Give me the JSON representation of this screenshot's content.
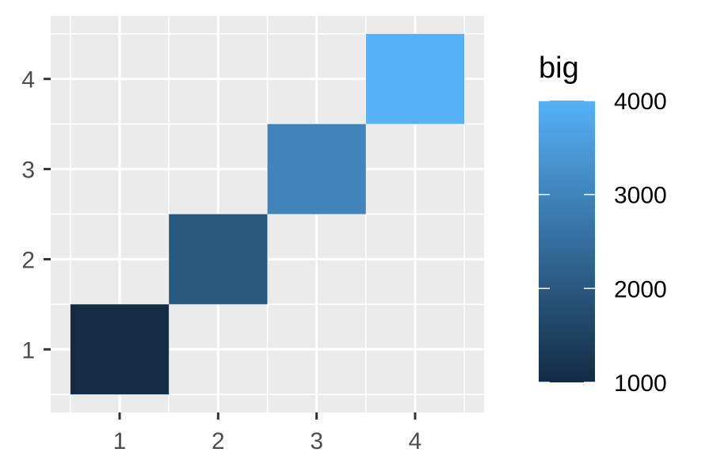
{
  "chart_data": {
    "type": "heatmap",
    "title": "",
    "xlabel": "",
    "ylabel": "",
    "x_ticks": [
      "1",
      "2",
      "3",
      "4"
    ],
    "y_ticks": [
      "1",
      "2",
      "3",
      "4"
    ],
    "xlim": [
      0.5,
      4.5
    ],
    "ylim": [
      0.5,
      4.5
    ],
    "grid": true,
    "cells": [
      {
        "x": 1,
        "y": 1,
        "value": 1000
      },
      {
        "x": 2,
        "y": 2,
        "value": 2000
      },
      {
        "x": 3,
        "y": 3,
        "value": 3000
      },
      {
        "x": 4,
        "y": 4,
        "value": 4000
      }
    ],
    "legend": {
      "title": "big",
      "placement": "right",
      "min": 1000,
      "max": 4000,
      "breaks": [
        "1000",
        "2000",
        "3000",
        "4000"
      ],
      "low_color": "#132B43",
      "high_color": "#56B1F7"
    },
    "colors": {
      "panel_background": "#EBEBEB",
      "grid_line": "#FFFFFF",
      "tick_text": "#4D4D4D",
      "tick_mark": "#333333"
    }
  }
}
